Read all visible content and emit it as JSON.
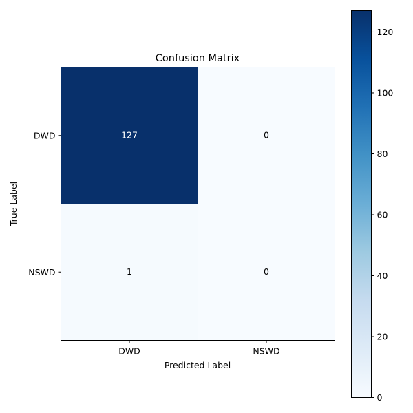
{
  "chart_data": {
    "type": "heatmap",
    "title": "Confusion Matrix",
    "xlabel": "Predicted Label",
    "ylabel": "True Label",
    "x_categories": [
      "DWD",
      "NSWD"
    ],
    "y_categories": [
      "DWD",
      "NSWD"
    ],
    "values": [
      [
        127,
        0
      ],
      [
        1,
        0
      ]
    ],
    "value_labels": [
      [
        "127",
        "0"
      ],
      [
        "1",
        "0"
      ]
    ],
    "colorbar": {
      "min": 0,
      "max": 127,
      "ticks": [
        0,
        20,
        40,
        60,
        80,
        100,
        120
      ],
      "tick_labels": [
        "0",
        "20",
        "40",
        "60",
        "80",
        "100",
        "120"
      ]
    },
    "colormap": "Blues",
    "grid": false
  }
}
